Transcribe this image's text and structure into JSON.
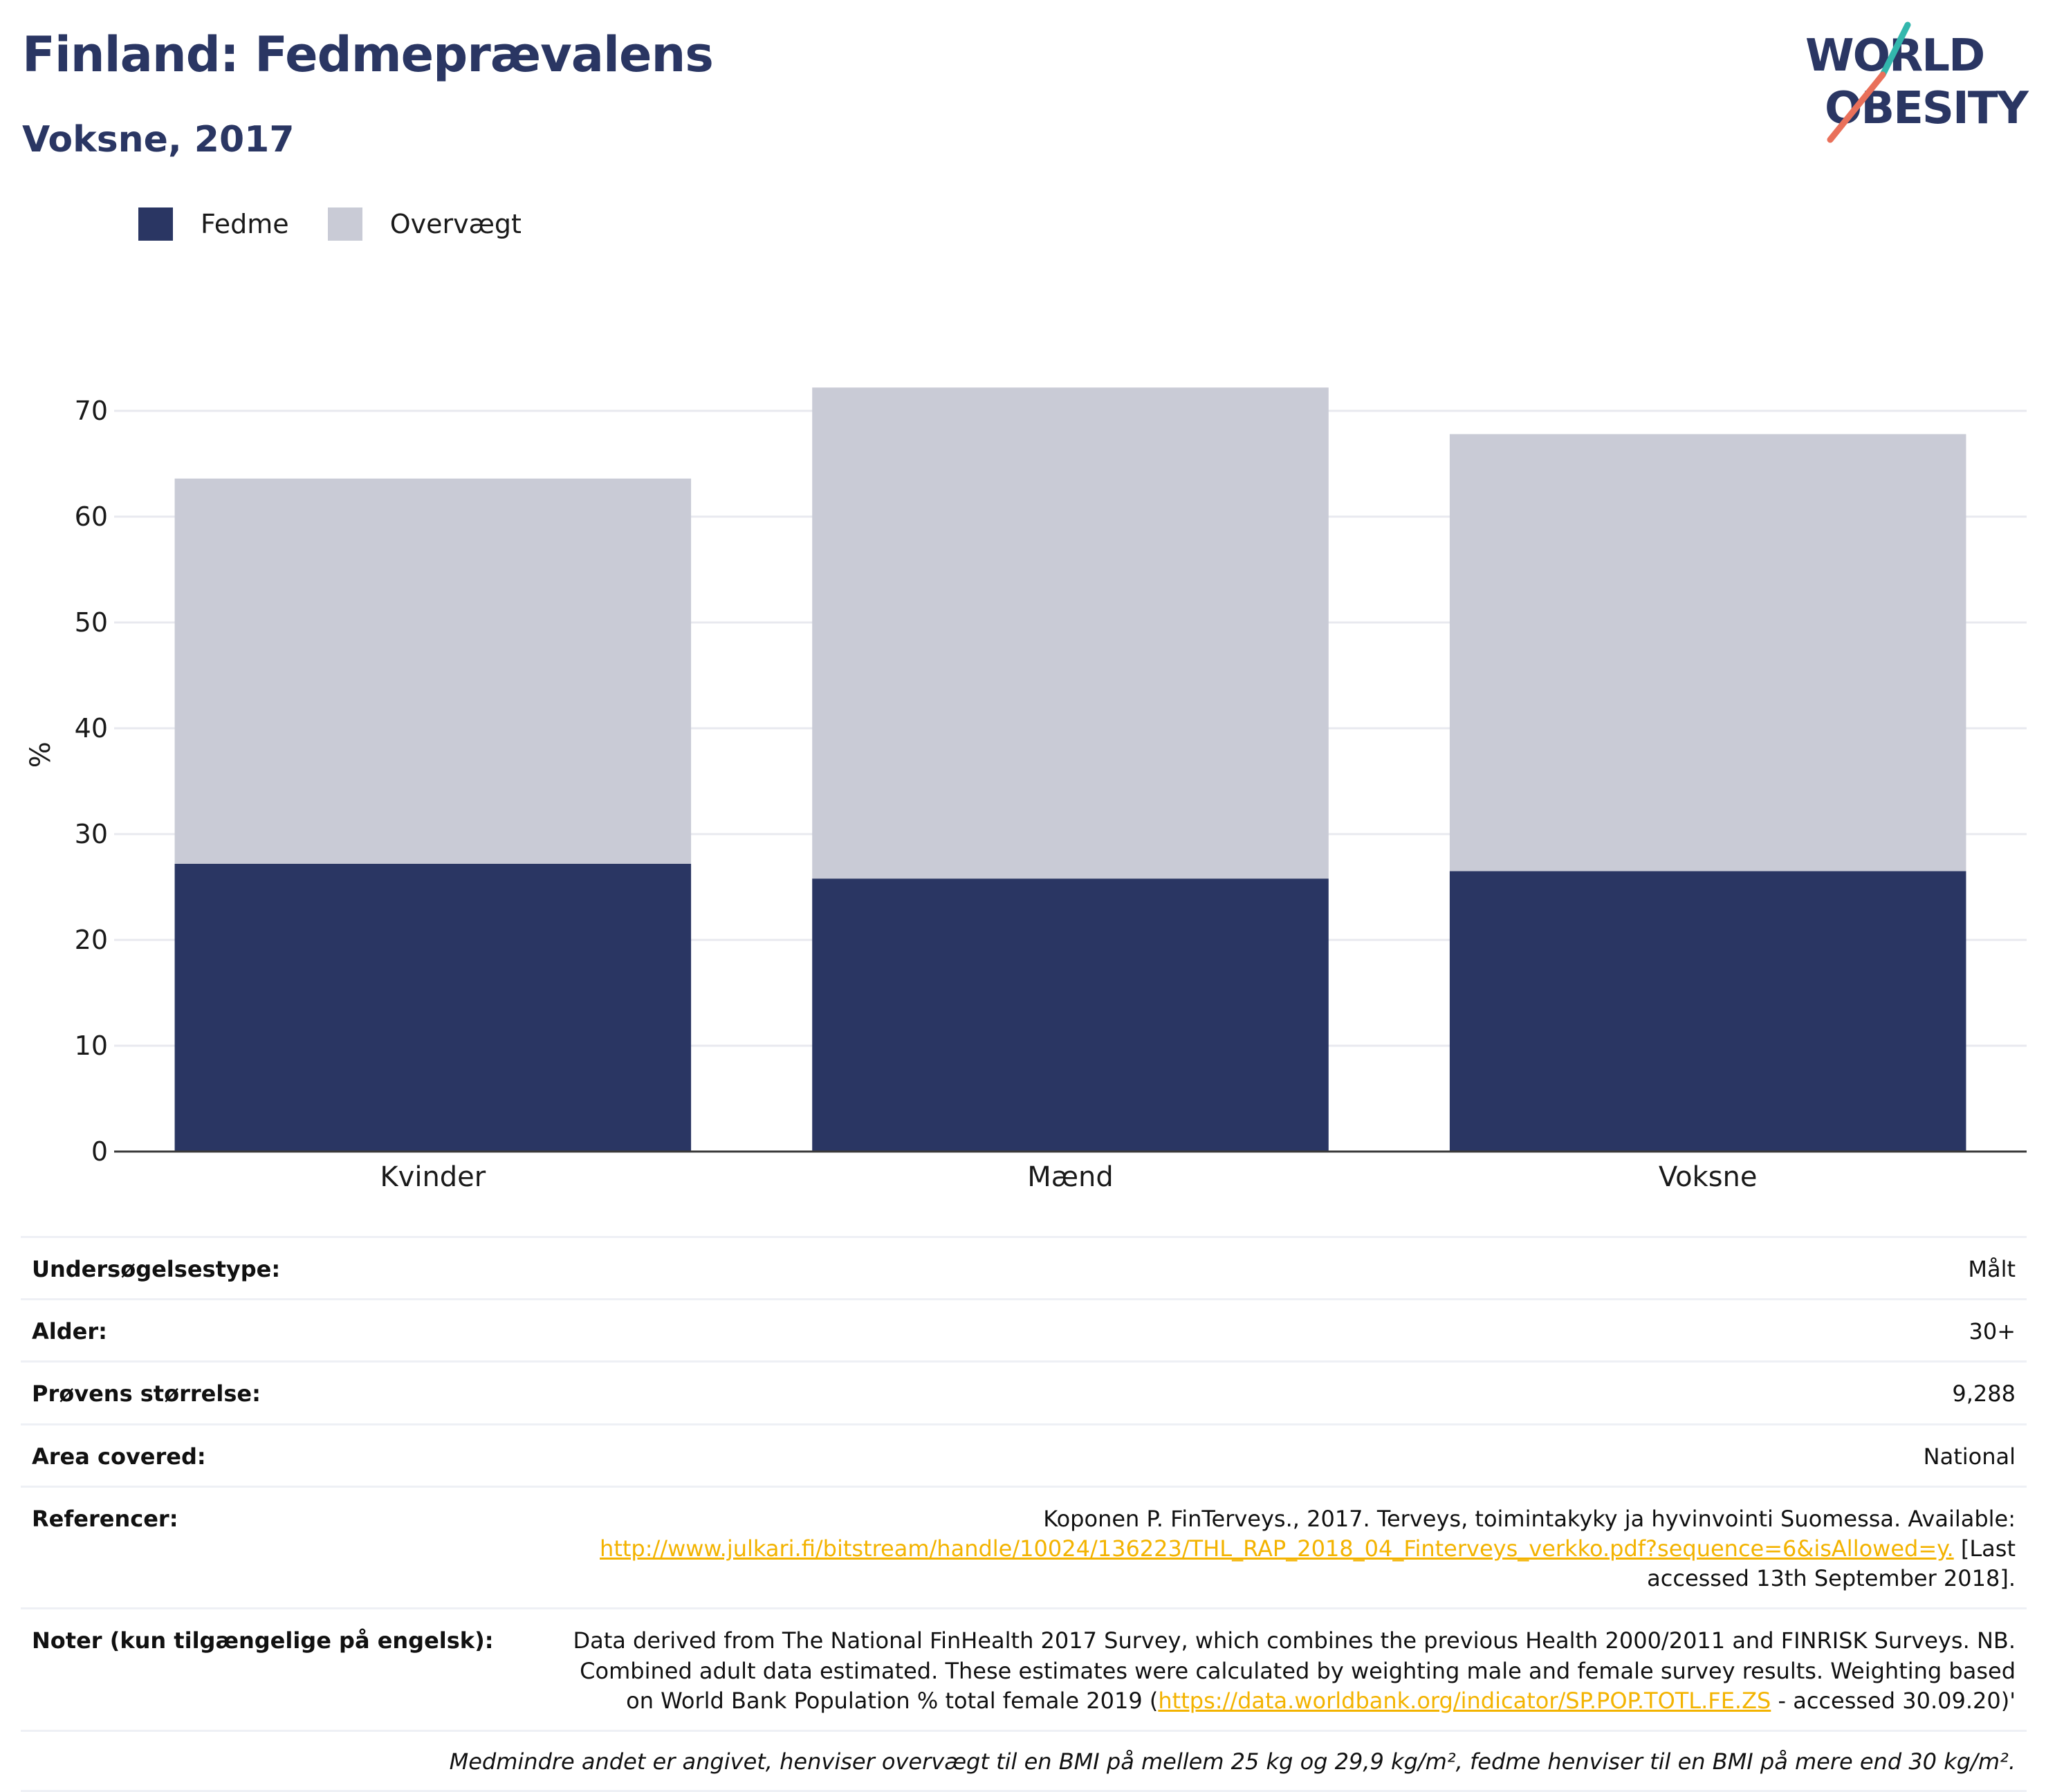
{
  "title": "Finland: Fedmeprævalens",
  "subtitle": "Voksne, 2017",
  "logo": {
    "line1": "WORLD",
    "line2": "OBESITY",
    "colors": {
      "text": "#2a3663",
      "slash_top": "#33b7ad",
      "slash_bottom": "#e9705a"
    }
  },
  "colors": {
    "fedme": "#2a3663",
    "overvaegt": "#c9cbd6",
    "link": "#f3b300"
  },
  "legend": {
    "items": [
      "Fedme",
      "Overvægt"
    ]
  },
  "chart_data": {
    "type": "bar",
    "stacked": true,
    "categories": [
      "Kvinder",
      "Mænd",
      "Voksne"
    ],
    "series": [
      {
        "name": "Fedme",
        "values": [
          27.2,
          25.8,
          26.5
        ]
      },
      {
        "name": "Overvægt",
        "values": [
          36.4,
          46.4,
          41.3
        ]
      }
    ],
    "ylabel": "%",
    "ylim": [
      0,
      75
    ],
    "yticks": [
      0,
      10,
      20,
      30,
      40,
      50,
      60,
      70
    ],
    "grid": true,
    "legend_position": "top-left"
  },
  "info": [
    {
      "label": "Undersøgelsestype:",
      "value": "Målt"
    },
    {
      "label": "Alder:",
      "value": "30+"
    },
    {
      "label": "Prøvens størrelse:",
      "value": "9,288"
    },
    {
      "label": "Area covered:",
      "value": "National"
    }
  ],
  "references": {
    "label": "Referencer:",
    "text_before": "Koponen P. FinTerveys., 2017. Terveys, toimintakyky ja hyvinvointi Suomessa. Available:",
    "link": "http://www.julkari.fi/bitstream/handle/10024/136223/THL_RAP_2018_04_Finterveys_verkko.pdf?sequence=6&isAllowed=y.",
    "text_after": "[Last accessed 13th September 2018]."
  },
  "notes": {
    "label": "Noter (kun tilgængelige på engelsk):",
    "text_before": "Data derived from The National FinHealth 2017 Survey, which combines the previous Health 2000/2011 and FINRISK Surveys. NB. Combined adult data estimated. These estimates were calculated by weighting male and female survey results. Weighting based on World Bank Population % total female 2019 (",
    "link": "https://data.worldbank.org/indicator/SP.POP.TOTL.FE.ZS",
    "text_after": " - accessed 30.09.20)'"
  },
  "footnote": "Medmindre andet er angivet, henviser overvægt til en BMI på mellem 25 kg og 29,9 kg/m², fedme henviser til en BMI på mere end 30 kg/m²."
}
